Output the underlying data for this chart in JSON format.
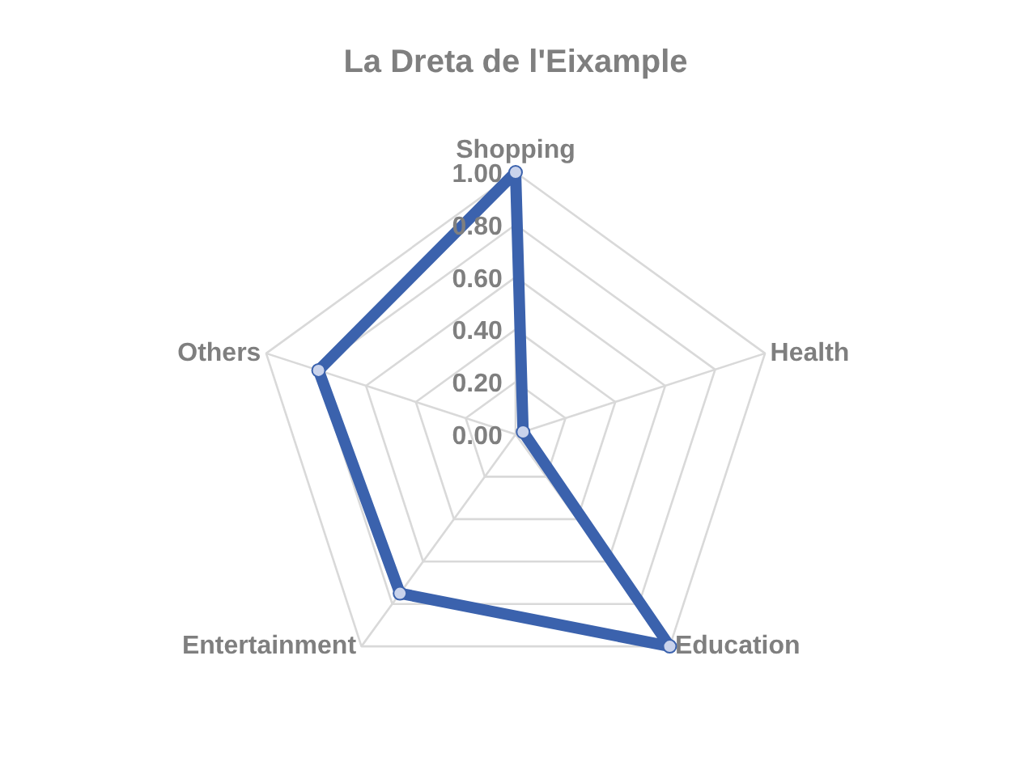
{
  "chart_data": {
    "type": "radar",
    "title": "La Dreta de l'Eixample",
    "categories": [
      "Shopping",
      "Health",
      "Education",
      "Entertainment",
      "Others"
    ],
    "series": [
      {
        "color": "#3b62ad",
        "values": [
          1.0,
          0.03,
          1.0,
          0.75,
          0.79
        ]
      }
    ],
    "ylim": [
      0,
      1
    ],
    "yticks": [
      {
        "value": 0,
        "label": "0.00"
      },
      {
        "value": 0.2,
        "label": "0.20"
      },
      {
        "value": 0.4,
        "label": "0.40"
      },
      {
        "value": 0.6,
        "label": "0.60"
      },
      {
        "value": 0.8,
        "label": "0.80"
      },
      {
        "value": 1,
        "label": "1.00"
      }
    ],
    "grid": true,
    "marker": "circle"
  }
}
